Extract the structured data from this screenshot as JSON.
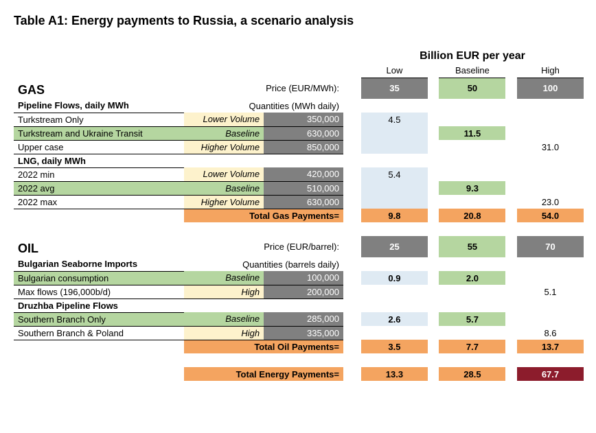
{
  "title": "Table A1: Energy payments to Russia, a scenario analysis",
  "super_heading": "Billion EUR per year",
  "scenario_cols": [
    "Low",
    "Baseline",
    "High"
  ],
  "colors": {
    "gray": "#808080",
    "green": "#b5d6a0",
    "yellow": "#fdf2cc",
    "blue": "#dfeaf3",
    "orange": "#f4a460",
    "maroon": "#8c1c2c",
    "white": "#ffffff",
    "text_on_gray": "#ffffff"
  },
  "gas": {
    "heading": "GAS",
    "price_label": "Price (EUR/MWh):",
    "qty_label": "Quantities (MWh daily)",
    "prices": {
      "low": "35",
      "baseline": "50",
      "high": "100"
    },
    "price_bg": {
      "low": "gray",
      "baseline": "green",
      "high": "gray"
    },
    "groups": [
      {
        "subheading": "Pipeline Flows, daily MWh",
        "rows": [
          {
            "label": "Turkstream Only",
            "scenario": "Lower Volume",
            "scen_bg": "yellow",
            "qty": "350,000",
            "low": "4.5",
            "baseline": "",
            "high": "",
            "row_bg": "",
            "val_bg": {
              "low": "blue",
              "baseline": "",
              "high": ""
            }
          },
          {
            "label": "Turkstream and Ukraine Transit",
            "scenario": "Baseline",
            "scen_bg": "green",
            "qty": "630,000",
            "low": "",
            "baseline": "11.5",
            "high": "",
            "row_bg": "green",
            "bold": true,
            "val_bg": {
              "low": "blue",
              "baseline": "green",
              "high": ""
            }
          },
          {
            "label": "Upper case",
            "scenario": "Higher Volume",
            "scen_bg": "yellow",
            "qty": "850,000",
            "low": "",
            "baseline": "",
            "high": "31.0",
            "row_bg": "",
            "val_bg": {
              "low": "blue",
              "baseline": "",
              "high": ""
            }
          }
        ]
      },
      {
        "subheading": "LNG, daily MWh",
        "rows": [
          {
            "label": "2022 min",
            "scenario": "Lower Volume",
            "scen_bg": "yellow",
            "qty": "420,000",
            "low": "5.4",
            "baseline": "",
            "high": "",
            "row_bg": "",
            "val_bg": {
              "low": "blue",
              "baseline": "",
              "high": ""
            }
          },
          {
            "label": "2022 avg",
            "scenario": "Baseline",
            "scen_bg": "green",
            "qty": "510,000",
            "low": "",
            "baseline": "9.3",
            "high": "",
            "row_bg": "green",
            "bold": true,
            "val_bg": {
              "low": "blue",
              "baseline": "green",
              "high": ""
            }
          },
          {
            "label": "2022 max",
            "scenario": "Higher Volume",
            "scen_bg": "yellow",
            "qty": "630,000",
            "low": "",
            "baseline": "",
            "high": "23.0",
            "row_bg": "",
            "val_bg": {
              "low": "blue",
              "baseline": "",
              "high": ""
            }
          }
        ]
      }
    ],
    "total": {
      "label": "Total Gas Payments=",
      "low": "9.8",
      "baseline": "20.8",
      "high": "54.0",
      "bg": "orange"
    }
  },
  "oil": {
    "heading": "OIL",
    "price_label": "Price (EUR/barrel):",
    "qty_label": "Quantities (barrels daily)",
    "prices": {
      "low": "25",
      "baseline": "55",
      "high": "70"
    },
    "price_bg": {
      "low": "gray",
      "baseline": "green",
      "high": "gray"
    },
    "groups": [
      {
        "subheading": "Bulgarian Seaborne Imports",
        "rows": [
          {
            "label": "Bulgarian consumption",
            "scenario": "Baseline",
            "scen_bg": "green",
            "qty": "100,000",
            "low": "0.9",
            "baseline": "2.0",
            "high": "",
            "row_bg": "green",
            "bold": true,
            "val_bg": {
              "low": "blue",
              "baseline": "green",
              "high": ""
            }
          },
          {
            "label": "Max flows (196,000b/d)",
            "scenario": "High",
            "scen_bg": "yellow",
            "qty": "200,000",
            "low": "",
            "baseline": "",
            "high": "5.1",
            "row_bg": "",
            "val_bg": {
              "low": "",
              "baseline": "",
              "high": ""
            }
          }
        ]
      },
      {
        "subheading": "Druzhba Pipeline Flows",
        "rows": [
          {
            "label": "Southern Branch Only",
            "scenario": "Baseline",
            "scen_bg": "green",
            "qty": "285,000",
            "low": "2.6",
            "baseline": "5.7",
            "high": "",
            "row_bg": "green",
            "bold": true,
            "val_bg": {
              "low": "blue",
              "baseline": "green",
              "high": ""
            }
          },
          {
            "label": "Southern Branch & Poland",
            "scenario": "High",
            "scen_bg": "yellow",
            "qty": "335,000",
            "low": "",
            "baseline": "",
            "high": "8.6",
            "row_bg": "",
            "val_bg": {
              "low": "",
              "baseline": "",
              "high": ""
            }
          }
        ]
      }
    ],
    "total": {
      "label": "Total Oil Payments=",
      "low": "3.5",
      "baseline": "7.7",
      "high": "13.7",
      "bg": "orange"
    }
  },
  "grand_total": {
    "label": "Total Energy Payments=",
    "low": "13.3",
    "baseline": "28.5",
    "high": "67.7",
    "bg": "orange",
    "high_bg": "maroon",
    "high_fg": "#ffffff"
  }
}
